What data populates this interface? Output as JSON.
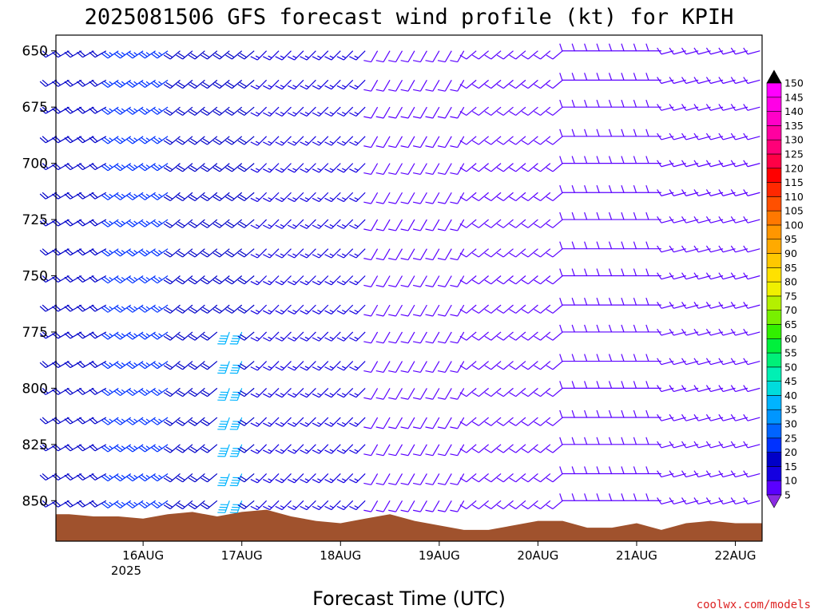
{
  "chart_data": {
    "type": "wind-barb",
    "title": "2025081506 GFS forecast wind profile (kt) for KPIH",
    "xlabel": "Forecast Time (UTC)",
    "credit": "coolwx.com/models",
    "units": "kt",
    "y_axis": {
      "ticks": [
        650,
        675,
        700,
        725,
        750,
        775,
        800,
        825,
        850
      ],
      "range": [
        643,
        868
      ],
      "inverted": true
    },
    "x_axis": {
      "ticks": [
        "16AUG",
        "17AUG",
        "18AUG",
        "19AUG",
        "20AUG",
        "21AUG",
        "22AUG"
      ],
      "year_label": "2025",
      "range_hours": [
        -3.2,
        168.5
      ]
    },
    "colorbar": {
      "levels": [
        5,
        10,
        15,
        20,
        25,
        30,
        35,
        40,
        45,
        50,
        55,
        60,
        65,
        70,
        75,
        80,
        85,
        90,
        95,
        100,
        105,
        110,
        115,
        120,
        125,
        130,
        135,
        140,
        145,
        150
      ],
      "colors": [
        "#8a2be2",
        "#5a00ff",
        "#1400e0",
        "#0000c8",
        "#0032ff",
        "#0064ff",
        "#0096ff",
        "#00b4ff",
        "#00dcdc",
        "#00f0b4",
        "#00f078",
        "#00f03c",
        "#32f000",
        "#78f000",
        "#b4f000",
        "#f0f000",
        "#ffe100",
        "#ffc800",
        "#ffaa00",
        "#ff9600",
        "#ff7800",
        "#ff5000",
        "#ff2800",
        "#ff0000",
        "#ff0046",
        "#ff0078",
        "#ff00a0",
        "#ff00c8",
        "#ff00e6",
        "#ff00ff"
      ]
    },
    "terrain": {
      "color": "#a0522d",
      "surface_pressure": [
        [
          -3.2,
          856
        ],
        [
          0,
          856
        ],
        [
          6,
          857
        ],
        [
          12,
          857
        ],
        [
          18,
          858
        ],
        [
          24,
          856
        ],
        [
          30,
          855
        ],
        [
          36,
          857
        ],
        [
          42,
          855
        ],
        [
          48,
          854
        ],
        [
          54,
          857
        ],
        [
          60,
          859
        ],
        [
          66,
          860
        ],
        [
          72,
          858
        ],
        [
          78,
          856
        ],
        [
          84,
          859
        ],
        [
          90,
          861
        ],
        [
          96,
          863
        ],
        [
          102,
          863
        ],
        [
          108,
          861
        ],
        [
          114,
          859
        ],
        [
          120,
          859
        ],
        [
          126,
          862
        ],
        [
          132,
          862
        ],
        [
          138,
          860
        ],
        [
          144,
          863
        ],
        [
          150,
          860
        ],
        [
          156,
          859
        ],
        [
          162,
          860
        ],
        [
          168.5,
          860
        ]
      ]
    },
    "wind_barbs": {
      "time_step_hours": 3,
      "pressure_levels": [
        650,
        663,
        675,
        688,
        700,
        713,
        725,
        738,
        750,
        763,
        775,
        788,
        800,
        813,
        825,
        838,
        850,
        863
      ],
      "time_segments": [
        {
          "from": -3,
          "to": 9,
          "dir": 240,
          "speed": 20
        },
        {
          "from": 12,
          "to": 24,
          "dir": 235,
          "speed": 25
        },
        {
          "from": 27,
          "to": 45,
          "dir": 230,
          "speed": 20
        },
        {
          "from": 48,
          "to": 72,
          "dir": 225,
          "speed": 15
        },
        {
          "from": 75,
          "to": 96,
          "dir": 210,
          "speed": 10
        },
        {
          "from": 99,
          "to": 120,
          "dir": 230,
          "speed": 10
        },
        {
          "from": 123,
          "to": 144,
          "dir": 270,
          "speed": 10
        },
        {
          "from": 147,
          "to": 168,
          "dir": 255,
          "speed": 12
        }
      ],
      "low_level_jet": {
        "from": 39,
        "to": 42,
        "levels": [
          775,
          788,
          800,
          813,
          825,
          838,
          850,
          863
        ],
        "dir": 200,
        "speed": 40
      }
    }
  }
}
